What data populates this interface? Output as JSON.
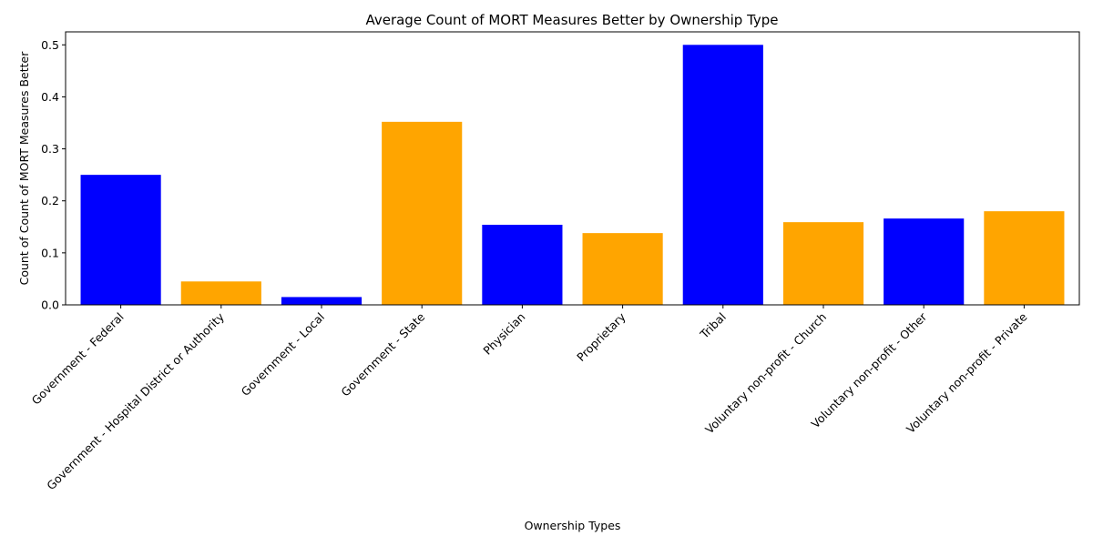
{
  "chart_data": {
    "type": "bar",
    "title": "Average Count of MORT Measures Better by Ownership Type",
    "xlabel": "Ownership Types",
    "ylabel": "Count of Count of MORT Measures Better",
    "categories": [
      "Government - Federal",
      "Government - Hospital District or Authority",
      "Government - Local",
      "Government - State",
      "Physician",
      "Proprietary",
      "Tribal",
      "Voluntary non-profit - Church",
      "Voluntary non-profit - Other",
      "Voluntary non-profit - Private"
    ],
    "values": [
      0.25,
      0.045,
      0.015,
      0.352,
      0.154,
      0.138,
      0.5,
      0.159,
      0.166,
      0.18
    ],
    "bar_colors": [
      "#0000ff",
      "#ffa500",
      "#0000ff",
      "#ffa500",
      "#0000ff",
      "#ffa500",
      "#0000ff",
      "#ffa500",
      "#0000ff",
      "#ffa500"
    ],
    "ylim": [
      0,
      0.525
    ],
    "yticks": [
      "0.0",
      "0.1",
      "0.2",
      "0.3",
      "0.4",
      "0.5"
    ],
    "grid": false,
    "legend": "none"
  }
}
